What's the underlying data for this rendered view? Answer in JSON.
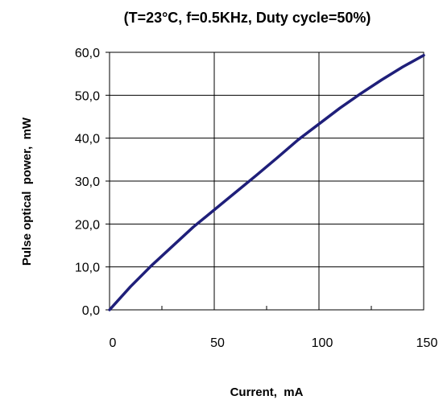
{
  "chart_data": {
    "type": "line",
    "title": "(T=23°C, f=0.5KHz, Duty cycle=50%)",
    "xlabel": "Current,  mA",
    "ylabel": "Pulse optical  power,  mW",
    "xlim": [
      0,
      150
    ],
    "ylim": [
      0,
      60
    ],
    "x_ticks": [
      "0",
      "50",
      "100",
      "150"
    ],
    "y_ticks": [
      "0,0",
      "10,0",
      "20,0",
      "30,0",
      "40,0",
      "50,0",
      "60,0"
    ],
    "grid": true,
    "legend": "none",
    "series": [
      {
        "color": "#1f1f7a",
        "x": [
          0,
          10,
          20,
          30,
          40,
          50,
          60,
          70,
          80,
          90,
          100,
          110,
          120,
          130,
          140,
          150
        ],
        "y": [
          0,
          5.4,
          10.3,
          14.8,
          19.3,
          23.3,
          27.3,
          31.3,
          35.4,
          39.6,
          43.3,
          47.0,
          50.4,
          53.6,
          56.6,
          59.3
        ]
      }
    ]
  }
}
